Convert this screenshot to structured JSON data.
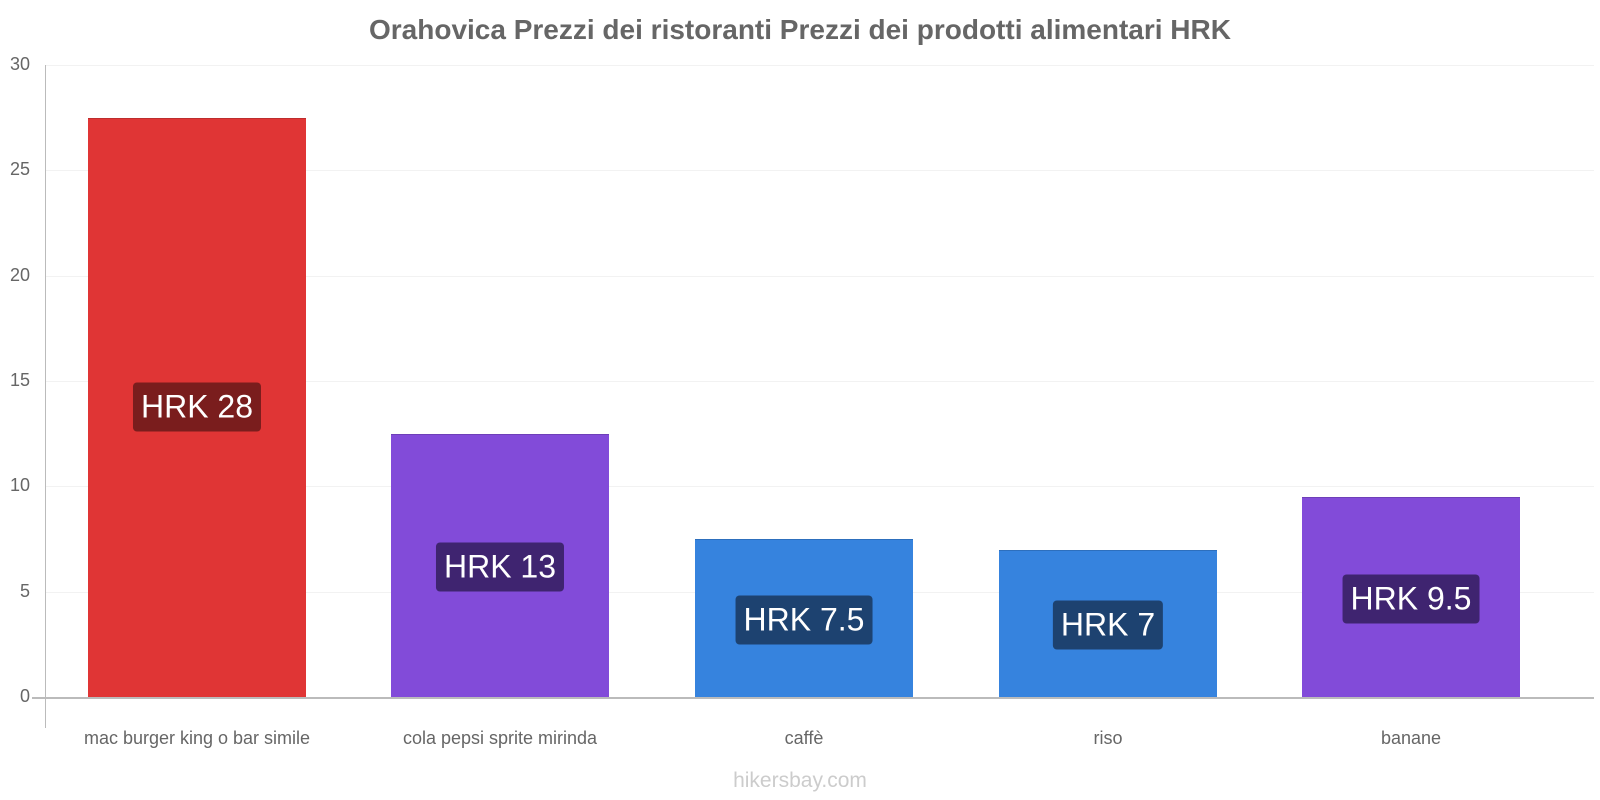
{
  "title": "Orahovica Prezzi dei ristoranti Prezzi dei prodotti alimentari HRK",
  "watermark": "hikersbay.com",
  "y_ticks": [
    "0",
    "5",
    "10",
    "15",
    "20",
    "25",
    "30"
  ],
  "bars": [
    {
      "category": "mac burger king o bar simile",
      "value": 27.5,
      "label": "HRK 28",
      "color": "#e03535",
      "label_bg": "#7a1d1d"
    },
    {
      "category": "cola pepsi sprite mirinda",
      "value": 12.5,
      "label": "HRK 13",
      "color": "#824bd9",
      "label_bg": "#3f2470"
    },
    {
      "category": "caffè",
      "value": 7.5,
      "label": "HRK 7.5",
      "color": "#3683de",
      "label_bg": "#1d4270"
    },
    {
      "category": "riso",
      "value": 7,
      "label": "HRK 7",
      "color": "#3683de",
      "label_bg": "#1d4270"
    },
    {
      "category": "banane",
      "value": 9.5,
      "label": "HRK 9.5",
      "color": "#824bd9",
      "label_bg": "#3f2470"
    }
  ],
  "chart_data": {
    "type": "bar",
    "title": "Orahovica Prezzi dei ristoranti Prezzi dei prodotti alimentari HRK",
    "categories": [
      "mac burger king o bar simile",
      "cola pepsi sprite mirinda",
      "caffè",
      "riso",
      "banane"
    ],
    "values": [
      27.5,
      12.5,
      7.5,
      7,
      9.5
    ],
    "data_labels": [
      "HRK 28",
      "HRK 13",
      "HRK 7.5",
      "HRK 7",
      "HRK 9.5"
    ],
    "xlabel": "",
    "ylabel": "",
    "ylim": [
      0,
      30
    ],
    "yticks": [
      0,
      5,
      10,
      15,
      20,
      25,
      30
    ],
    "grid": true,
    "legend": "none"
  }
}
